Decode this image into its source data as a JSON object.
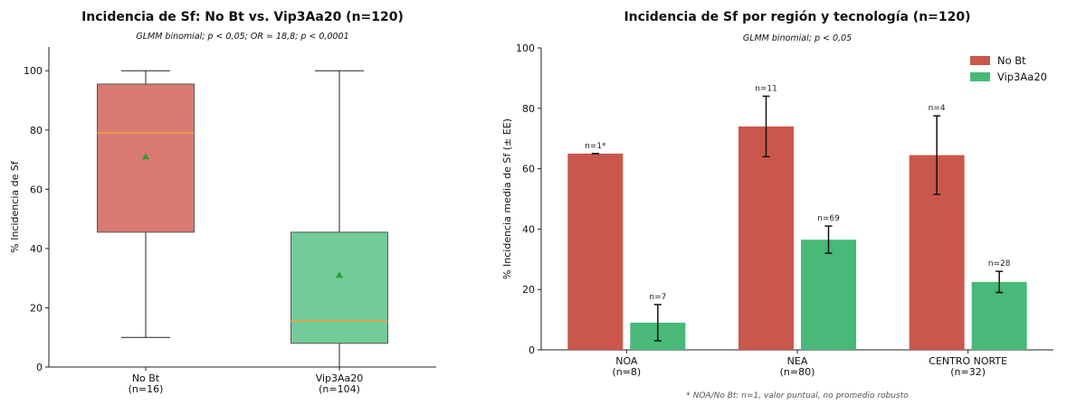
{
  "chart_data": [
    {
      "type": "box",
      "title": "Incidencia de Sf: No Bt vs. Vip3Aa20 (n=120)",
      "subtitle": "GLMM binomial; p < 0,05; OR = 18,8; p < 0,0001",
      "ylabel": "% Incidencia de Sf",
      "ylim": [
        0,
        108
      ],
      "yticks": [
        0,
        20,
        40,
        60,
        80,
        100
      ],
      "grid": false,
      "colors": {
        "No Bt": "#d97b72",
        "Vip3Aa20": "#72cb98",
        "median": "#f0a03c",
        "mean": "#2ca02c"
      },
      "groups": [
        {
          "label": "No Bt",
          "sublabel": "(n=16)",
          "whisker_low": 10,
          "q1": 45.5,
          "median": 79,
          "q3": 95.5,
          "whisker_high": 100,
          "mean": 71
        },
        {
          "label": "Vip3Aa20",
          "sublabel": "(n=104)",
          "whisker_low": 0,
          "q1": 8,
          "median": 15.5,
          "q3": 45.5,
          "whisker_high": 100,
          "mean": 31
        }
      ]
    },
    {
      "type": "bar",
      "title": "Incidencia de Sf por región y tecnología (n=120)",
      "subtitle": "GLMM binomial; p < 0,05",
      "ylabel": "% Incidencia media de Sf (± EE)",
      "ylim": [
        0,
        100
      ],
      "yticks": [
        0,
        20,
        40,
        60,
        80,
        100
      ],
      "grid": false,
      "legend_position": "top-right",
      "categories": [
        "NOA",
        "NEA",
        "CENTRO NORTE"
      ],
      "category_sublabels": [
        "(n=8)",
        "(n=80)",
        "(n=32)"
      ],
      "series": [
        {
          "name": "No Bt",
          "color": "#c9574c",
          "values": [
            65,
            74,
            64.5
          ],
          "errors": [
            0,
            10,
            13
          ],
          "n_labels": [
            "n=1*",
            "n=11",
            "n=4"
          ]
        },
        {
          "name": "Vip3Aa20",
          "color": "#48b978",
          "values": [
            9,
            36.5,
            22.5
          ],
          "errors": [
            6,
            4.5,
            3.5
          ],
          "n_labels": [
            "n=7",
            "n=69",
            "n=28"
          ]
        }
      ],
      "footnote": "* NOA/No Bt: n=1, valor puntual, no promedio robusto"
    }
  ]
}
